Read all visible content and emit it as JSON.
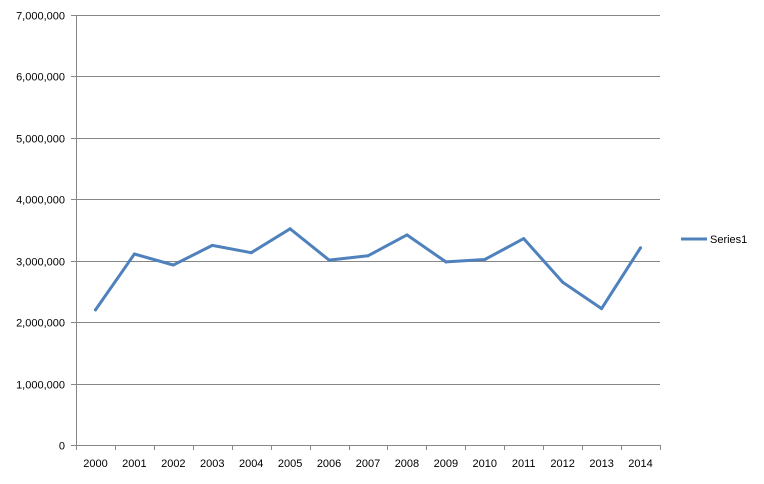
{
  "chart_data": {
    "type": "line",
    "title": "",
    "xlabel": "",
    "ylabel": "",
    "categories": [
      "2000",
      "2001",
      "2002",
      "2003",
      "2004",
      "2005",
      "2006",
      "2007",
      "2008",
      "2009",
      "2010",
      "2011",
      "2012",
      "2013",
      "2014"
    ],
    "series": [
      {
        "name": "Series1",
        "color": "#4F81BD",
        "values": [
          2200000,
          3110000,
          2930000,
          3250000,
          3130000,
          3520000,
          3010000,
          3080000,
          3420000,
          2980000,
          3020000,
          3360000,
          2650000,
          2220000,
          3210000
        ]
      }
    ],
    "ylim": [
      0,
      7000000
    ],
    "yticks": [
      0,
      1000000,
      2000000,
      3000000,
      4000000,
      5000000,
      6000000,
      7000000
    ],
    "ytick_labels": [
      "0",
      "1,000,000",
      "2,000,000",
      "3,000,000",
      "4,000,000",
      "5,000,000",
      "6,000,000",
      "7,000,000"
    ],
    "grid": true,
    "legend": {
      "position": "right",
      "entries": [
        "Series1"
      ]
    }
  }
}
